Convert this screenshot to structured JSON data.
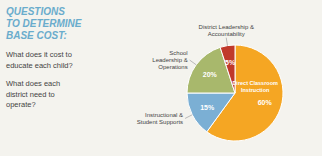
{
  "chart_data": {
    "type": "pie",
    "title": "QUESTIONS\nTO DETERMINE\nBASE COST:",
    "annotations": [
      "What does it cost to\neducate each child?",
      "What does each\ndistrict need to\noperate?"
    ],
    "categories": [
      "Direct Classroom\nInstruction",
      "Instructional &\nStudent Supports",
      "School\nLeadership &\nOperations",
      "District Leadership &\nAccountability"
    ],
    "values": [
      60,
      15,
      20,
      5
    ],
    "value_labels": [
      "60%",
      "15%",
      "20%",
      "5%"
    ],
    "colors": [
      "#F5A623",
      "#7BAFD4",
      "#A8B86C",
      "#C0392B"
    ],
    "data_labels": true
  }
}
